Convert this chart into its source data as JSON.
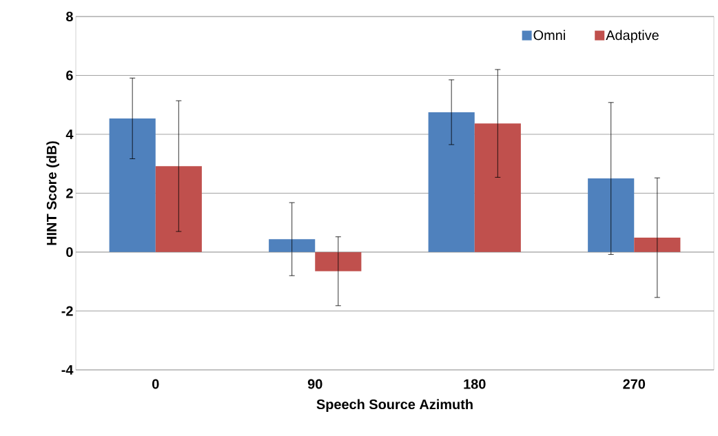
{
  "chart_data": {
    "type": "bar",
    "xlabel": "Speech Source Azimuth",
    "ylabel": "HINT Score (dB)",
    "categories": [
      "0",
      "90",
      "180",
      "270"
    ],
    "series": [
      {
        "name": "Omni",
        "color": "#4f81bd",
        "values": [
          4.54,
          0.44,
          4.75,
          2.5
        ],
        "errors": [
          1.37,
          1.24,
          1.1,
          2.58
        ]
      },
      {
        "name": "Adaptive",
        "color": "#c0504d",
        "values": [
          2.92,
          -0.65,
          4.37,
          0.49
        ],
        "errors": [
          2.22,
          1.17,
          1.83,
          2.03
        ]
      }
    ],
    "ylim": [
      -4,
      8
    ],
    "yticks": [
      -4,
      -2,
      0,
      2,
      4,
      6,
      8
    ],
    "grid": "y",
    "legend": "top right"
  }
}
